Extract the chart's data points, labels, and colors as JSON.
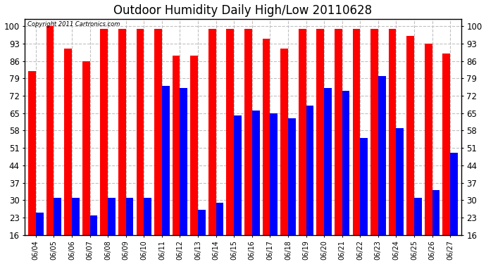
{
  "title": "Outdoor Humidity Daily High/Low 20110628",
  "copyright_text": "Copyright 2011 Cartronics.com",
  "dates": [
    "06/04",
    "06/05",
    "06/06",
    "06/07",
    "06/08",
    "06/09",
    "06/10",
    "06/11",
    "06/12",
    "06/13",
    "06/14",
    "06/15",
    "06/16",
    "06/17",
    "06/18",
    "06/19",
    "06/20",
    "06/21",
    "06/22",
    "06/23",
    "06/24",
    "06/25",
    "06/26",
    "06/27"
  ],
  "highs": [
    82,
    100,
    91,
    86,
    99,
    99,
    99,
    99,
    88,
    88,
    99,
    99,
    99,
    95,
    91,
    99,
    99,
    99,
    99,
    99,
    99,
    96,
    93,
    89
  ],
  "lows": [
    25,
    31,
    31,
    24,
    31,
    31,
    31,
    76,
    75,
    26,
    29,
    64,
    66,
    65,
    63,
    68,
    75,
    74,
    55,
    80,
    59,
    31,
    34,
    49
  ],
  "high_color": "#ff0000",
  "low_color": "#0000ff",
  "bg_color": "#ffffff",
  "grid_color": "#c0c0c0",
  "yticks": [
    16,
    23,
    30,
    37,
    44,
    51,
    58,
    65,
    72,
    79,
    86,
    93,
    100
  ],
  "ymin": 16,
  "ymax": 103,
  "bar_width": 0.42,
  "title_fontsize": 12,
  "figwidth": 6.9,
  "figheight": 3.75,
  "dpi": 100
}
